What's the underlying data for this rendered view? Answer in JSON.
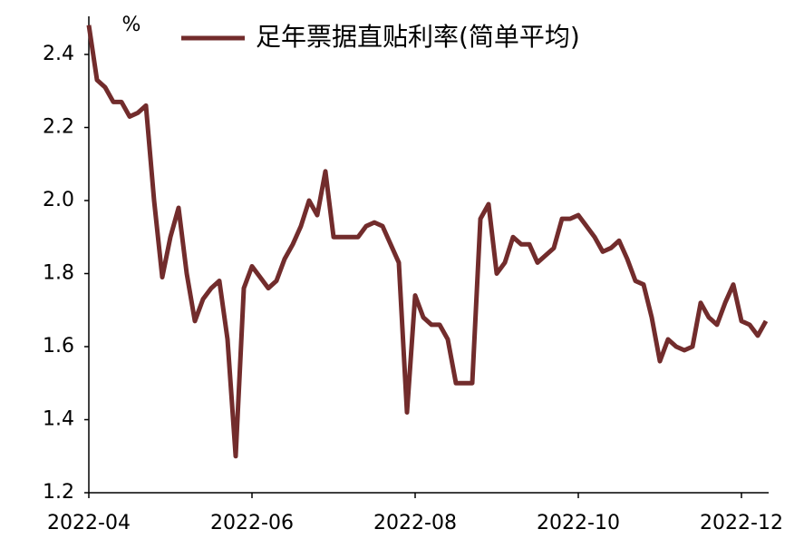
{
  "chart_data": {
    "type": "line",
    "unit_label": "%",
    "categories": [
      "2022-04",
      null,
      null,
      null,
      null,
      null,
      null,
      null,
      null,
      null,
      null,
      null,
      null,
      null,
      null,
      null,
      null,
      null,
      null,
      null,
      "2022-06",
      null,
      null,
      null,
      null,
      null,
      null,
      null,
      null,
      null,
      null,
      null,
      null,
      null,
      null,
      null,
      null,
      null,
      null,
      null,
      "2022-08",
      null,
      null,
      null,
      null,
      null,
      null,
      null,
      null,
      null,
      null,
      null,
      null,
      null,
      null,
      null,
      null,
      null,
      null,
      null,
      "2022-10",
      null,
      null,
      null,
      null,
      null,
      null,
      null,
      null,
      null,
      null,
      null,
      null,
      null,
      null,
      null,
      null,
      null,
      null,
      null,
      "2022-12",
      null,
      null,
      null
    ],
    "series": [
      {
        "name": "足年票据直贴利率(简单平均)",
        "color": "#722c2c",
        "values": [
          2.48,
          2.33,
          2.31,
          2.27,
          2.27,
          2.23,
          2.24,
          2.26,
          2.0,
          1.79,
          1.9,
          1.98,
          1.8,
          1.67,
          1.73,
          1.76,
          1.78,
          1.62,
          1.3,
          1.76,
          1.82,
          1.79,
          1.76,
          1.78,
          1.84,
          1.88,
          1.93,
          2.0,
          1.96,
          2.08,
          1.9,
          1.9,
          1.9,
          1.9,
          1.93,
          1.94,
          1.93,
          1.88,
          1.83,
          1.42,
          1.74,
          1.68,
          1.66,
          1.66,
          1.62,
          1.5,
          1.5,
          1.5,
          1.95,
          1.99,
          1.8,
          1.83,
          1.9,
          1.88,
          1.88,
          1.83,
          1.85,
          1.87,
          1.95,
          1.95,
          1.96,
          1.93,
          1.9,
          1.86,
          1.87,
          1.89,
          1.84,
          1.78,
          1.77,
          1.68,
          1.56,
          1.62,
          1.6,
          1.59,
          1.6,
          1.72,
          1.68,
          1.66,
          1.72,
          1.77,
          1.67,
          1.66,
          1.63,
          1.67
        ]
      }
    ],
    "ylim": [
      1.2,
      2.5
    ],
    "yticks": [
      1.2,
      1.4,
      1.6,
      1.8,
      {
        "value": 2,
        "label": "2.0"
      },
      2.2,
      2.4
    ]
  }
}
